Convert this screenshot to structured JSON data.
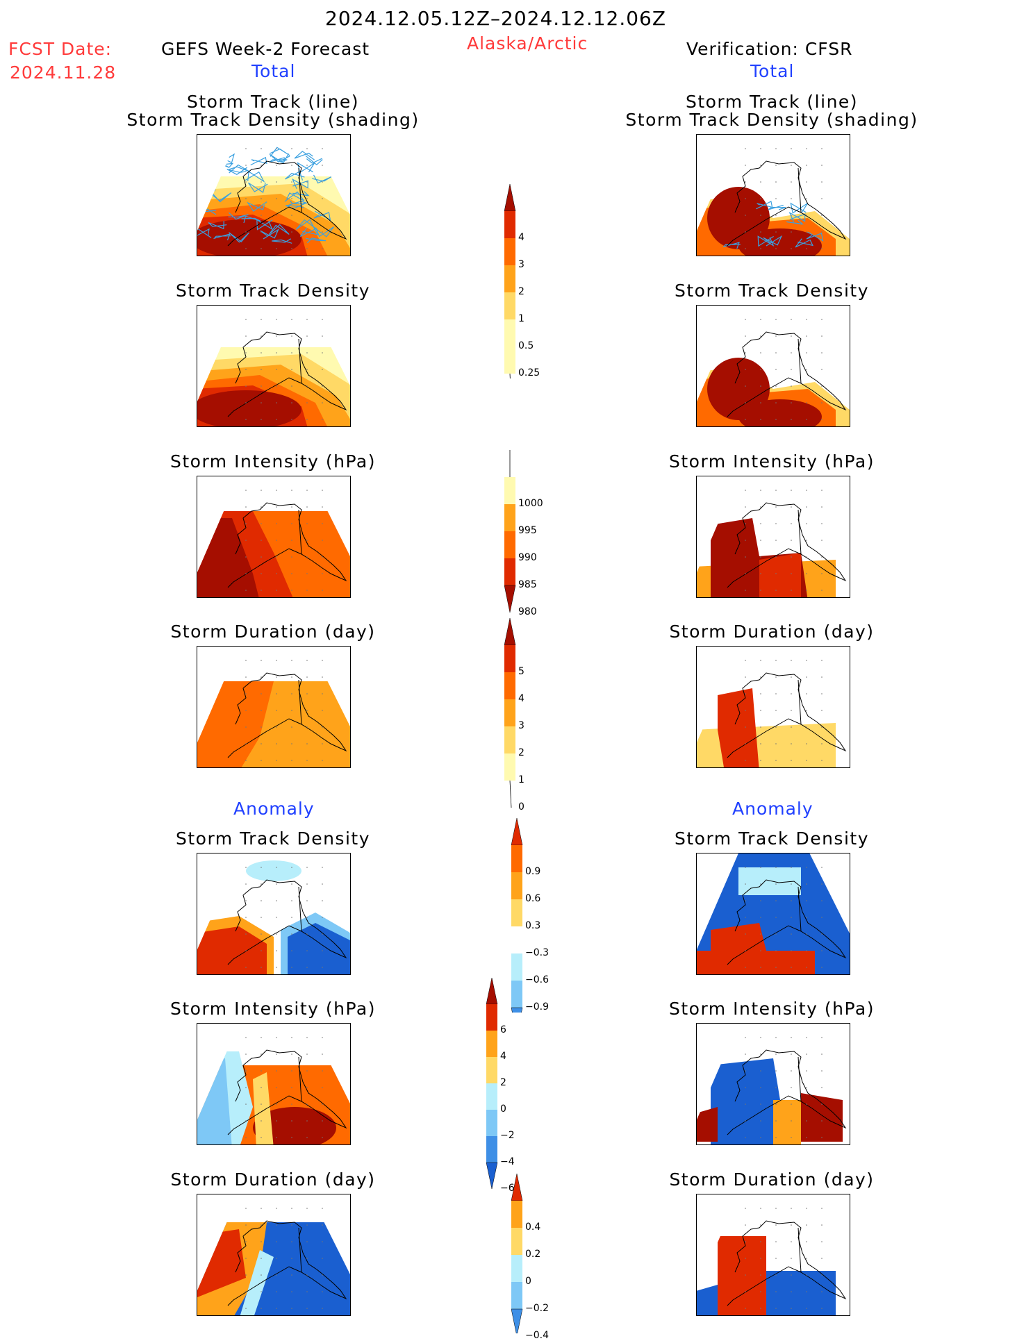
{
  "header": {
    "date_range": "2024.12.05.12Z–2024.12.12.06Z",
    "fcst_label": "FCST Date:",
    "fcst_date": "2024.11.28",
    "left_model": "GEFS Week-2 Forecast",
    "region": "Alaska/Arctic",
    "right_model": "Verification: CFSR",
    "total_label": "Total",
    "anomaly_label": "Anomaly"
  },
  "panel_titles": {
    "track_line": "Storm Track (line)",
    "track_shading": "Storm Track Density (shading)",
    "density": "Storm Track Density",
    "intensity": "Storm Intensity (hPa)",
    "duration": "Storm Duration (day)"
  },
  "colorbars": {
    "total_density": [
      "4",
      "3",
      "2",
      "1",
      "0.5",
      "0.25"
    ],
    "total_intensity": [
      "1000",
      "995",
      "990",
      "985",
      "980"
    ],
    "total_duration": [
      "5",
      "4",
      "3",
      "2",
      "1",
      "0"
    ],
    "anom_density": [
      "0.9",
      "0.6",
      "0.3",
      "−0.3",
      "−0.6",
      "−0.9"
    ],
    "anom_intensity": [
      "6",
      "4",
      "2",
      "0",
      "−2",
      "−4",
      "−6"
    ],
    "anom_duration": [
      "0.4",
      "0.2",
      "0",
      "−0.2",
      "−0.4"
    ]
  },
  "colors": {
    "warm": [
      "#fffab0",
      "#ffd966",
      "#ffa31a",
      "#ff6a00",
      "#e02a00",
      "#a50e00"
    ],
    "cool": [
      "#b7eefb",
      "#7ec8f6",
      "#3e8fe6",
      "#1a5fd0"
    ],
    "track": "#3aa0e0"
  }
}
